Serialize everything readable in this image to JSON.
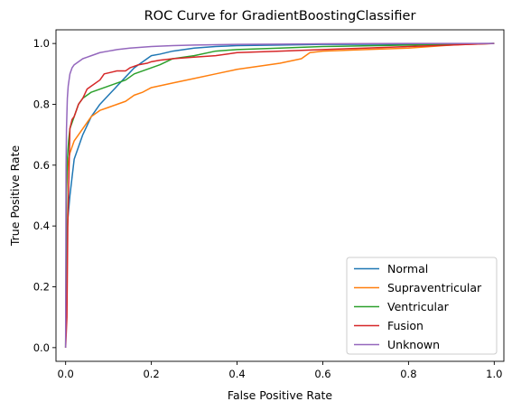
{
  "chart_data": {
    "type": "line",
    "title": "ROC Curve for GradientBoostingClassifier",
    "xlabel": "False Positive Rate",
    "ylabel": "True Positive Rate",
    "xlim": [
      -0.0225,
      1.0225
    ],
    "ylim": [
      -0.045,
      1.045
    ],
    "x_ticks": [
      0.0,
      0.2,
      0.4,
      0.6,
      0.8,
      1.0
    ],
    "y_ticks": [
      0.0,
      0.2,
      0.4,
      0.6,
      0.8,
      1.0
    ],
    "x_tick_labels": [
      "0.0",
      "0.2",
      "0.4",
      "0.6",
      "0.8",
      "1.0"
    ],
    "y_tick_labels": [
      "0.0",
      "0.2",
      "0.4",
      "0.6",
      "0.8",
      "1.0"
    ],
    "grid": false,
    "legend_position": "bottom-right",
    "series": [
      {
        "name": "Normal",
        "color": "#1f77b4",
        "x": [
          0,
          0.002,
          0.005,
          0.01,
          0.015,
          0.02,
          0.03,
          0.04,
          0.05,
          0.06,
          0.08,
          0.1,
          0.12,
          0.14,
          0.16,
          0.18,
          0.2,
          0.22,
          0.25,
          0.3,
          0.35,
          0.4,
          0.5,
          0.6,
          0.8,
          1.0
        ],
        "y": [
          0,
          0.3,
          0.42,
          0.5,
          0.56,
          0.62,
          0.66,
          0.7,
          0.73,
          0.76,
          0.8,
          0.83,
          0.86,
          0.89,
          0.92,
          0.94,
          0.96,
          0.965,
          0.975,
          0.985,
          0.99,
          0.993,
          0.995,
          0.997,
          0.998,
          1.0
        ]
      },
      {
        "name": "Supraventricular",
        "color": "#ff7f0e",
        "x": [
          0,
          0.002,
          0.004,
          0.006,
          0.01,
          0.015,
          0.02,
          0.03,
          0.04,
          0.05,
          0.06,
          0.08,
          0.1,
          0.12,
          0.14,
          0.16,
          0.18,
          0.2,
          0.25,
          0.3,
          0.35,
          0.4,
          0.45,
          0.5,
          0.55,
          0.57,
          0.6,
          0.7,
          0.8,
          0.9,
          1.0
        ],
        "y": [
          0,
          0.5,
          0.58,
          0.61,
          0.64,
          0.66,
          0.68,
          0.7,
          0.72,
          0.74,
          0.76,
          0.78,
          0.79,
          0.8,
          0.81,
          0.83,
          0.84,
          0.855,
          0.87,
          0.885,
          0.9,
          0.915,
          0.925,
          0.935,
          0.95,
          0.97,
          0.975,
          0.98,
          0.985,
          0.995,
          1.0
        ]
      },
      {
        "name": "Ventricular",
        "color": "#2ca02c",
        "x": [
          0,
          0.002,
          0.004,
          0.007,
          0.01,
          0.015,
          0.02,
          0.025,
          0.03,
          0.04,
          0.05,
          0.06,
          0.08,
          0.1,
          0.12,
          0.14,
          0.16,
          0.18,
          0.2,
          0.22,
          0.25,
          0.3,
          0.35,
          0.4,
          0.5,
          0.6,
          0.8,
          1.0
        ],
        "y": [
          0,
          0.52,
          0.62,
          0.68,
          0.72,
          0.74,
          0.76,
          0.78,
          0.8,
          0.82,
          0.83,
          0.84,
          0.85,
          0.86,
          0.87,
          0.88,
          0.9,
          0.91,
          0.92,
          0.93,
          0.95,
          0.96,
          0.975,
          0.98,
          0.985,
          0.99,
          0.995,
          1.0
        ]
      },
      {
        "name": "Fusion",
        "color": "#d62728",
        "x": [
          0,
          0.003,
          0.005,
          0.01,
          0.015,
          0.02,
          0.03,
          0.04,
          0.05,
          0.06,
          0.08,
          0.09,
          0.12,
          0.14,
          0.15,
          0.17,
          0.19,
          0.2,
          0.22,
          0.25,
          0.3,
          0.35,
          0.4,
          0.5,
          0.6,
          0.7,
          0.8,
          0.9,
          1.0
        ],
        "y": [
          0,
          0.1,
          0.4,
          0.72,
          0.75,
          0.76,
          0.8,
          0.82,
          0.85,
          0.86,
          0.88,
          0.9,
          0.91,
          0.91,
          0.92,
          0.93,
          0.935,
          0.94,
          0.945,
          0.95,
          0.955,
          0.96,
          0.97,
          0.975,
          0.98,
          0.985,
          0.99,
          0.995,
          1.0
        ]
      },
      {
        "name": "Unknown",
        "color": "#9467bd",
        "x": [
          0,
          0.001,
          0.002,
          0.004,
          0.006,
          0.01,
          0.015,
          0.02,
          0.03,
          0.04,
          0.05,
          0.06,
          0.08,
          0.1,
          0.12,
          0.15,
          0.2,
          0.25,
          0.3,
          0.4,
          0.5,
          0.6,
          0.8,
          1.0
        ],
        "y": [
          0,
          0.6,
          0.72,
          0.82,
          0.86,
          0.9,
          0.92,
          0.93,
          0.94,
          0.95,
          0.955,
          0.96,
          0.97,
          0.975,
          0.98,
          0.985,
          0.99,
          0.993,
          0.995,
          0.997,
          0.998,
          0.999,
          1.0,
          1.0
        ]
      }
    ]
  }
}
